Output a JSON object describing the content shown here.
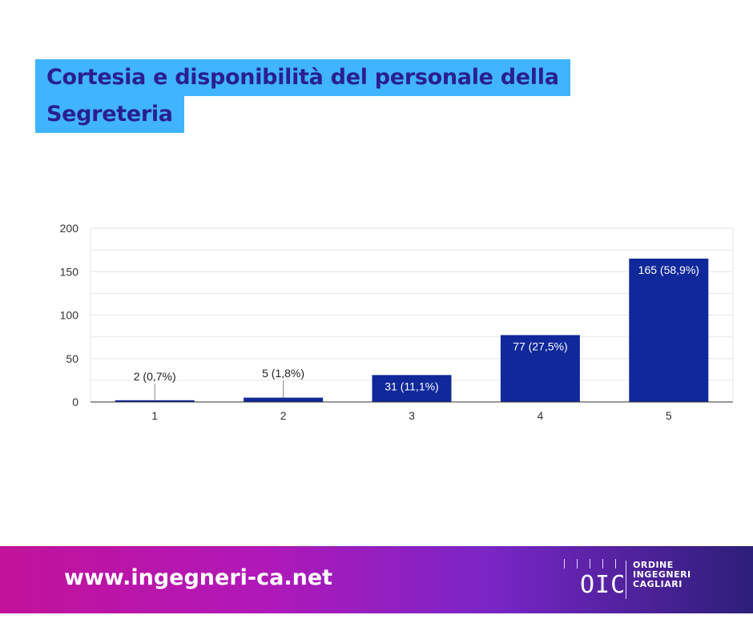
{
  "title": {
    "line1": "Cortesia e disponibilità del personale della",
    "line2": "Segreteria"
  },
  "chart_data": {
    "type": "bar",
    "categories": [
      "1",
      "2",
      "3",
      "4",
      "5"
    ],
    "values": [
      2,
      5,
      31,
      77,
      165
    ],
    "data_labels": [
      "2 (0,7%)",
      "5 (1,8%)",
      "31 (11,1%)",
      "77 (27,5%)",
      "165 (58,9%)"
    ],
    "y_ticks": [
      0,
      50,
      100,
      150,
      200
    ],
    "ylim": [
      0,
      200
    ],
    "grid": true,
    "colors": {
      "bar": "#10289a",
      "grid": "#e6e6e6",
      "axis": "#333333"
    }
  },
  "footer": {
    "url": "www.ingegneri-ca.net",
    "logo_mark": "OIC",
    "logo_lines": [
      "ORDINE",
      "INGEGNERI",
      "CAGLIARI"
    ]
  },
  "colors": {
    "title_bg": "#40b4ff",
    "title_text": "#2a1f8f",
    "footer_gradient": [
      "#c2129a",
      "#b018b8",
      "#7a25c6",
      "#2c1f78"
    ]
  }
}
